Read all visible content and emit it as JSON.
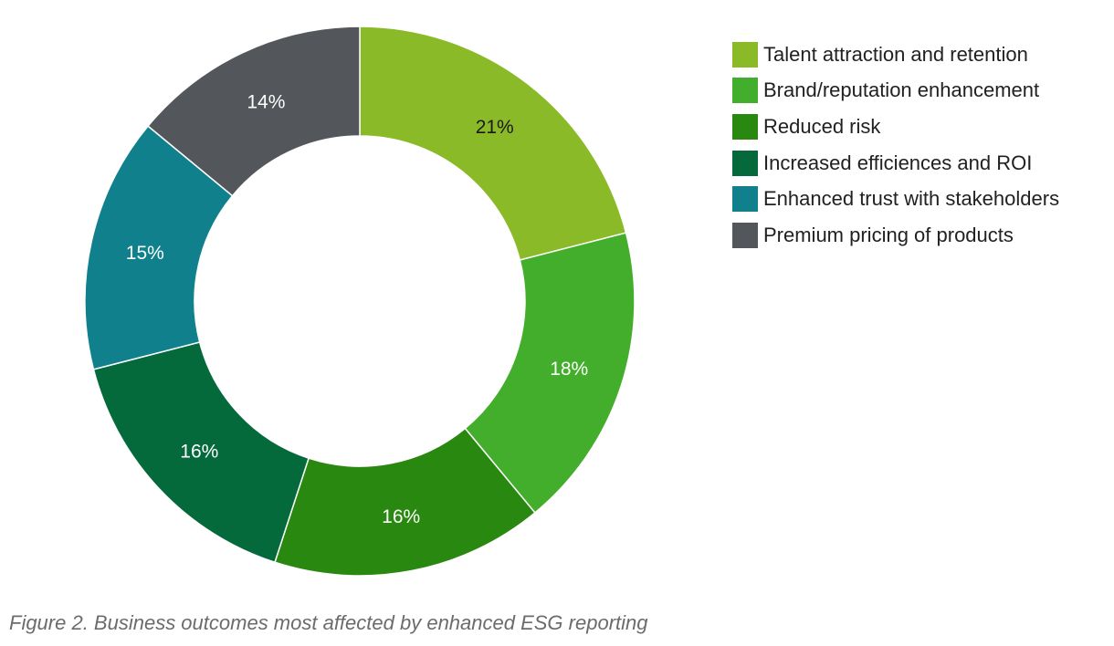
{
  "chart_data": {
    "type": "pie",
    "donut": true,
    "categories": [
      "Talent attraction and retention",
      "Brand/reputation enhancement",
      "Reduced risk",
      "Increased efficiences and ROI",
      "Enhanced trust with stakeholders",
      "Premium pricing of products"
    ],
    "values": [
      21,
      18,
      16,
      16,
      15,
      14
    ],
    "data_labels": [
      "21%",
      "18%",
      "16%",
      "16%",
      "15%",
      "14%"
    ],
    "colors": [
      "#8aba28",
      "#43ae2c",
      "#29880f",
      "#056a3b",
      "#0f808c",
      "#53565a"
    ],
    "label_colors": [
      "#1a1a1a",
      "#ffffff",
      "#ffffff",
      "#ffffff",
      "#ffffff",
      "#ffffff"
    ],
    "legend_position": "top-right",
    "unit": "%"
  },
  "caption": "Figure 2. Business outcomes most affected by enhanced ESG reporting"
}
